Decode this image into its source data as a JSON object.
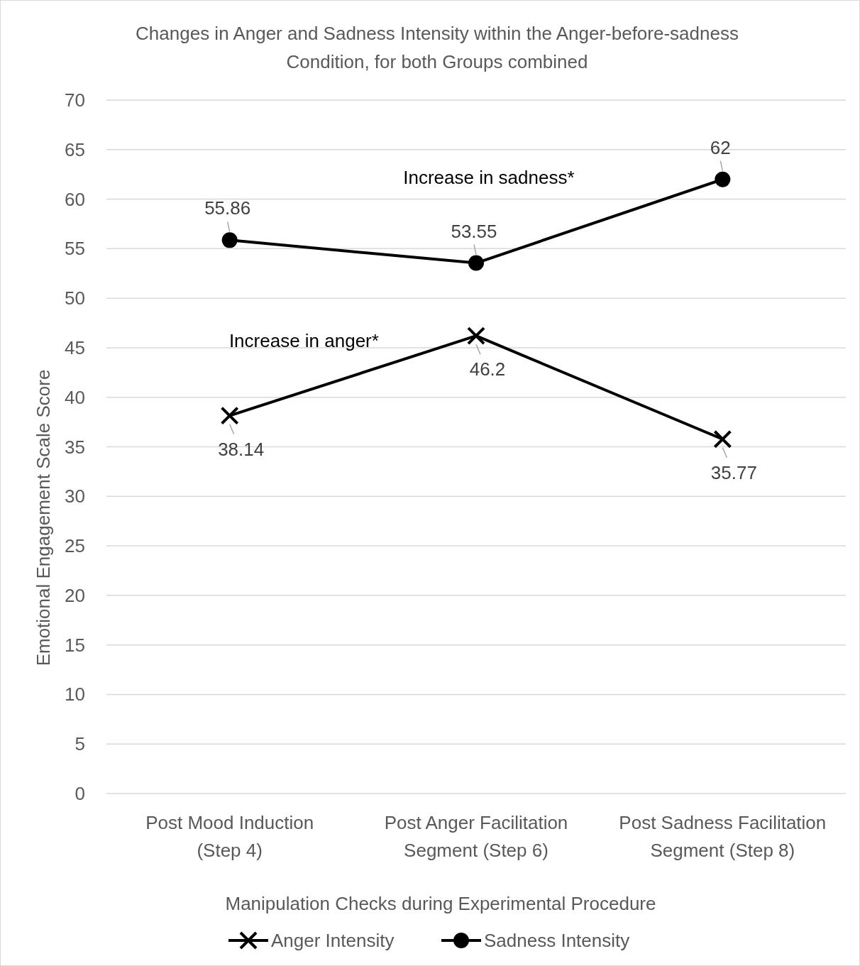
{
  "chart_data": {
    "type": "line",
    "title": "Changes in Anger and Sadness Intensity within the Anger-before-sadness Condition, for both Groups combined",
    "xlabel": "Manipulation Checks during Experimental Procedure",
    "ylabel": "Emotional Engagement Scale Score",
    "categories": [
      "Post Mood Induction (Step 4)",
      "Post Anger Facilitation Segment (Step 6)",
      "Post Sadness Facilitation Segment (Step 8)"
    ],
    "series": [
      {
        "name": "Anger Intensity",
        "color": "#000000",
        "marker": "cross",
        "values": [
          38.14,
          46.2,
          35.77
        ]
      },
      {
        "name": "Sadness Intensity",
        "color": "#000000",
        "marker": "circle",
        "values": [
          55.86,
          53.55,
          62
        ]
      }
    ],
    "ylim": [
      0,
      70
    ],
    "yticks": [
      0,
      5,
      10,
      15,
      20,
      25,
      30,
      35,
      40,
      45,
      50,
      55,
      60,
      65,
      70
    ],
    "grid": "y",
    "legend": "bottom",
    "data_labels": true,
    "line_style": "solid",
    "annotations": [
      "Increase in sadness*",
      "Increase in anger*"
    ]
  }
}
